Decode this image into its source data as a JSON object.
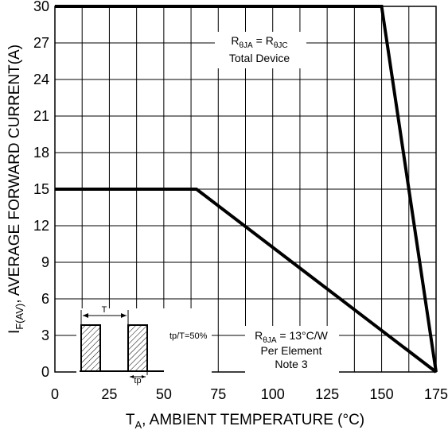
{
  "chart_data": {
    "type": "line",
    "xlabel_main": "T",
    "xlabel_sub": "A",
    "xlabel_rest": ", AMBIENT TEMPERATURE (°C)",
    "ylabel_main": "I",
    "ylabel_sub": "F(AV)",
    "ylabel_rest": ", AVERAGE FORWARD CURRENT(A)",
    "xlim": [
      0,
      175
    ],
    "ylim": [
      0,
      30
    ],
    "xticks": [
      "0",
      "25",
      "50",
      "75",
      "100",
      "125",
      "150",
      "175"
    ],
    "yticks": [
      "0",
      "3",
      "6",
      "9",
      "12",
      "15",
      "18",
      "21",
      "24",
      "27",
      "30"
    ],
    "grid": true,
    "series": [
      {
        "x": [
          0,
          150,
          175
        ],
        "y": [
          30,
          30,
          0
        ]
      },
      {
        "x": [
          0,
          65,
          175
        ],
        "y": [
          15,
          15,
          0
        ]
      }
    ],
    "annotations": {
      "total": {
        "line1_r": "R",
        "line1_sub1": "θJA",
        "line1_eq": " = R",
        "line1_sub2": "θJC",
        "line2": "Total Device"
      },
      "element": {
        "line1_r": "R",
        "line1_sub": "θJA",
        "line1_rest": " = 13°C/W",
        "line2": "Per Element",
        "line3": "Note 3"
      },
      "inset": {
        "T": "T",
        "tp": "tp",
        "duty": "tp/T=50%"
      }
    }
  }
}
